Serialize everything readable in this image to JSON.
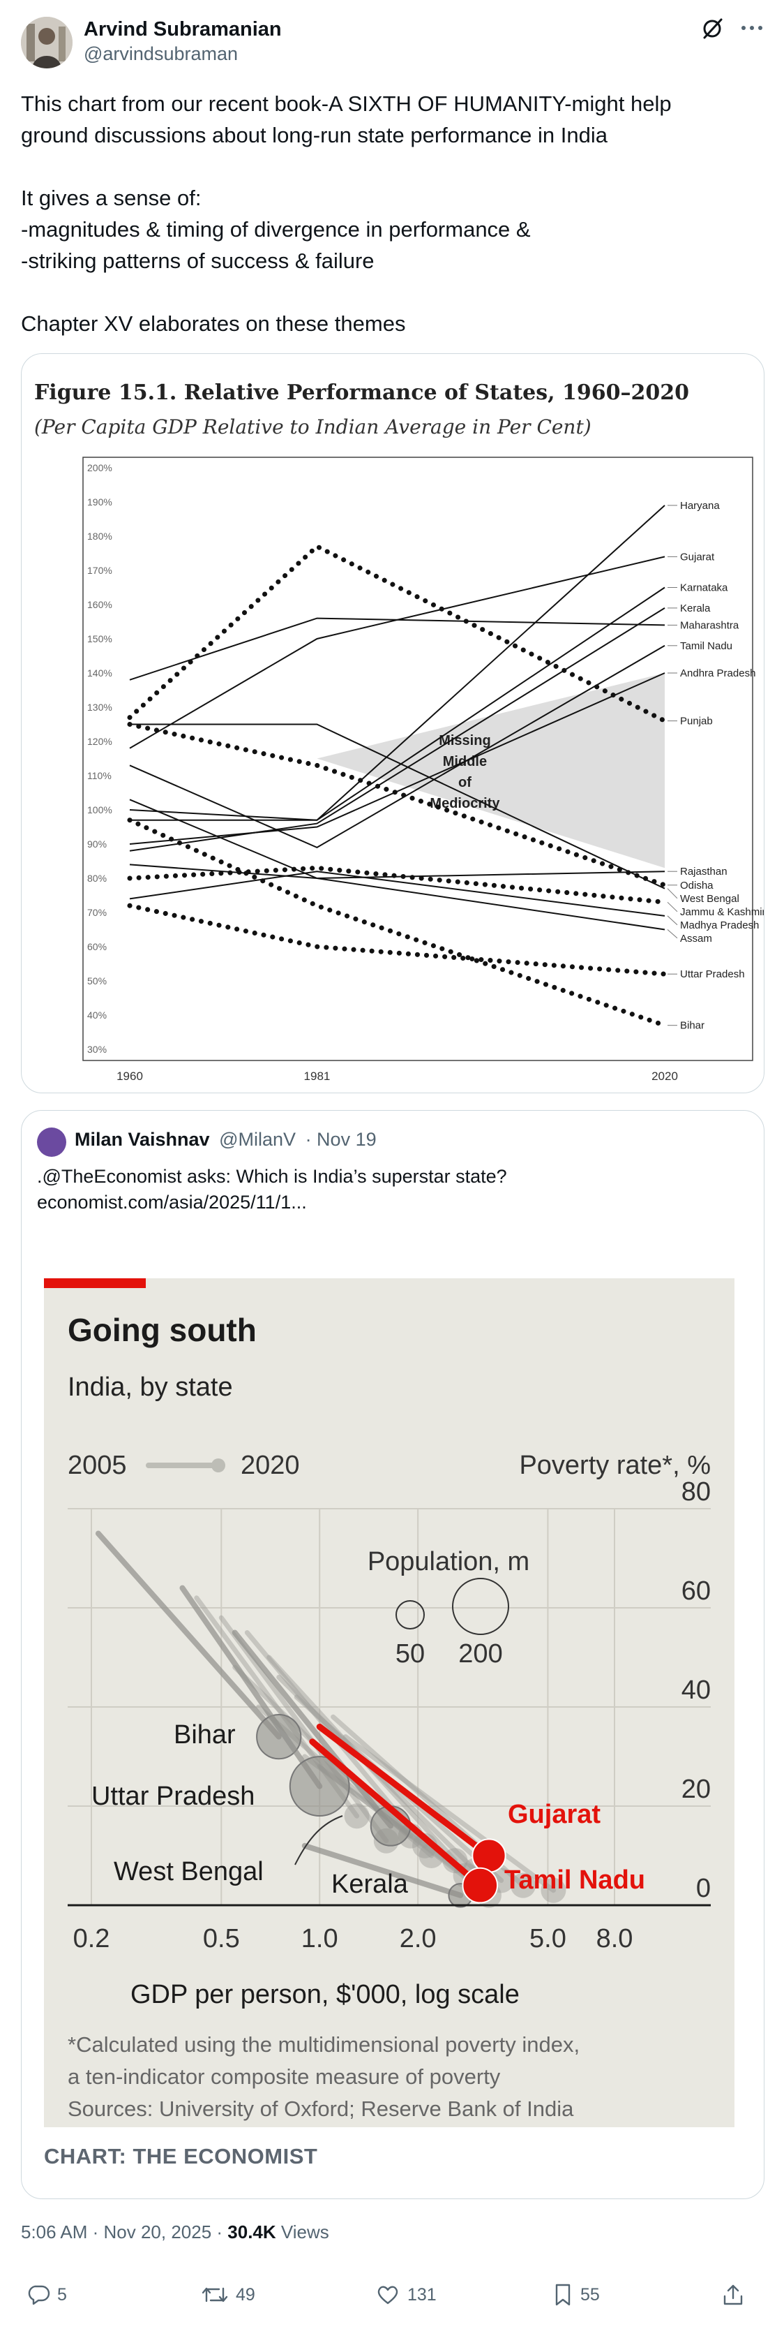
{
  "author": {
    "name": "Arvind Subramanian",
    "handle": "@arvindsubraman"
  },
  "tweet": {
    "text": "This chart from our recent book-A SIXTH OF HUMANITY-might help\nground discussions about long-run state performance in India\n\nIt gives a sense of:\n-magnitudes & timing of divergence in performance &\n-striking patterns of success & failure\n\nChapter XV elaborates on these themes"
  },
  "figure": {
    "title": "Figure 15.1. Relative Performance of States, 1960–2020",
    "subtitle": "(Per Capita GDP Relative to Indian Average in Per Cent)",
    "annotation": [
      "Missing",
      "Middle",
      "of",
      "Mediocrity"
    ]
  },
  "quote": {
    "name": "Milan Vaishnav",
    "handle": "@MilanV",
    "date": "· Nov 19",
    "text": ".@TheEconomist asks: Which is India’s superstar state?\neconomist.com/asia/2025/11/1..."
  },
  "economist": {
    "title": "Going south",
    "subtitle": "India, by state",
    "legend_start": "2005",
    "legend_end": "2020",
    "y_title": "Poverty rate*, %",
    "pop_title": "Population, m",
    "pop_small": "50",
    "pop_large": "200",
    "x_title": "GDP per person, $'000, log scale",
    "footnote1": "*Calculated using the multidimensional poverty index,",
    "footnote2": "a ten-indicator composite measure of poverty",
    "sources": "Sources: University of Oxford; Reserve Bank of India",
    "credit": "CHART: THE ECONOMIST",
    "accent": "#e3120b"
  },
  "stats": {
    "time": "5:06 AM · Nov 20, 2025 · ",
    "views": "30.4K",
    "views_label": " Views",
    "replies": "5",
    "reposts": "49",
    "likes": "131",
    "bookmarks": "55"
  },
  "chart_data": [
    {
      "type": "line",
      "title": "Figure 15.1. Relative Performance of States, 1960–2020",
      "ylabel": "Per Capita GDP Relative to Indian Average in Per Cent",
      "ylim": [
        30,
        200
      ],
      "y_ticks": [
        "200%",
        "190%",
        "180%",
        "170%",
        "160%",
        "150%",
        "140%",
        "130%",
        "120%",
        "110%",
        "100%",
        "90%",
        "80%",
        "70%",
        "60%",
        "50%",
        "40%",
        "30%"
      ],
      "x_ticks": [
        "1960",
        "1981",
        "2020"
      ],
      "x": [
        1960,
        1981,
        2020
      ],
      "series": [
        {
          "name": "Haryana",
          "values": [
            100,
            97,
            189
          ],
          "style": "solid"
        },
        {
          "name": "Gujarat",
          "values": [
            118,
            150,
            174
          ],
          "style": "solid"
        },
        {
          "name": "Karnataka",
          "values": [
            97,
            97,
            165
          ],
          "style": "solid"
        },
        {
          "name": "Kerala",
          "values": [
            88,
            96,
            159
          ],
          "style": "solid"
        },
        {
          "name": "Maharashtra",
          "values": [
            138,
            156,
            154
          ],
          "style": "solid"
        },
        {
          "name": "Tamil Nadu",
          "values": [
            113,
            89,
            148
          ],
          "style": "solid"
        },
        {
          "name": "Andhra Pradesh",
          "values": [
            90,
            95,
            140
          ],
          "style": "solid"
        },
        {
          "name": "Punjab",
          "values": [
            127,
            177,
            126
          ],
          "style": "dotted"
        },
        {
          "name": "Rajasthan",
          "values": [
            84,
            80,
            82
          ],
          "style": "solid"
        },
        {
          "name": "Odisha",
          "values": [
            125,
            113,
            78
          ],
          "style": "dotted"
        },
        {
          "name": "West Bengal",
          "values": [
            125,
            125,
            77
          ],
          "style": "solid"
        },
        {
          "name": "Jammu & Kashmir",
          "values": [
            80,
            83,
            73
          ],
          "style": "dotted"
        },
        {
          "name": "Madhya Pradesh",
          "values": [
            74,
            82,
            69
          ],
          "style": "solid"
        },
        {
          "name": "Assam",
          "values": [
            103,
            80,
            65
          ],
          "style": "solid"
        },
        {
          "name": "Uttar Pradesh",
          "values": [
            72,
            60,
            52
          ],
          "style": "dotted"
        },
        {
          "name": "Bihar",
          "values": [
            97,
            72,
            37
          ],
          "style": "dotted"
        }
      ],
      "missing_middle": {
        "label": "Missing Middle of Mediocrity",
        "polygon": [
          [
            1981,
            115
          ],
          [
            2020,
            140
          ],
          [
            2020,
            83
          ]
        ]
      }
    },
    {
      "type": "scatter",
      "title": "Going south",
      "subtitle": "India, by state",
      "xlabel": "GDP per person, $'000, log scale",
      "ylabel": "Poverty rate*, %",
      "x_ticks": [
        "0.2",
        "0.5",
        "1.0",
        "2.0",
        "5.0",
        "8.0"
      ],
      "y_ticks": [
        "0",
        "20",
        "40",
        "60",
        "80"
      ],
      "xlim": [
        0.2,
        8.0
      ],
      "ylim": [
        0,
        80
      ],
      "series": [
        {
          "name": "Bihar",
          "x": [
            0.21,
            0.75
          ],
          "y": [
            75,
            34
          ],
          "pop": 125
        },
        {
          "name": "Uttar Pradesh",
          "x": [
            0.38,
            1.0
          ],
          "y": [
            64,
            24
          ],
          "pop": 225
        },
        {
          "name": "West Bengal",
          "x": [
            0.55,
            1.65
          ],
          "y": [
            55,
            16
          ],
          "pop": 100
        },
        {
          "name": "Kerala",
          "x": [
            0.9,
            2.7
          ],
          "y": [
            12,
            2
          ],
          "pop": 35
        },
        {
          "name": "Gujarat",
          "x": [
            1.0,
            3.3
          ],
          "y": [
            36,
            10
          ],
          "pop": 70,
          "highlight": true
        },
        {
          "name": "Tamil Nadu",
          "x": [
            0.95,
            3.1
          ],
          "y": [
            33,
            4
          ],
          "pop": 77,
          "highlight": true
        }
      ]
    }
  ]
}
